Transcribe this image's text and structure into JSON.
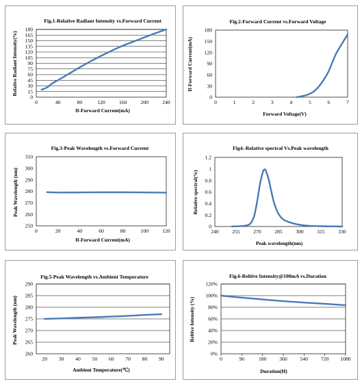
{
  "chart_data": [
    {
      "type": "line",
      "title": "Fig.1-Relative Radiant Intensity vs.Forward  Current",
      "xlabel": "If-Forward Current(mA)",
      "ylabel": "Relative Radiant Intensity(%)",
      "xlim": [
        0,
        240
      ],
      "ylim": [
        0,
        180
      ],
      "xticks": [
        0,
        40,
        80,
        120,
        160,
        200,
        240
      ],
      "yticks": [
        0,
        15,
        30,
        45,
        60,
        75,
        90,
        105,
        120,
        135,
        150,
        165,
        180
      ],
      "ytick_labels": [
        "0",
        "15",
        "30",
        "45",
        "60",
        "75",
        "90",
        "105",
        "120",
        "135",
        "150",
        "165",
        "180"
      ],
      "grid": "horizontal",
      "series": [
        {
          "color": "#4a78b8",
          "x": [
            10,
            20,
            30,
            40,
            60,
            80,
            100,
            120,
            140,
            160,
            180,
            200,
            220,
            240
          ],
          "y": [
            20,
            26,
            37,
            45,
            62,
            79,
            95,
            110,
            124,
            137,
            148,
            159,
            170,
            180
          ]
        }
      ]
    },
    {
      "type": "line",
      "title": "Fig.2-Forward Current vs.Forward Voltage",
      "xlabel": "Forward Voltage(V)",
      "ylabel": "If-Forward Current(mA)",
      "xlim": [
        0,
        7
      ],
      "ylim": [
        0,
        180
      ],
      "xticks": [
        0,
        1,
        2,
        3,
        4,
        5,
        6,
        7
      ],
      "yticks": [
        0,
        30,
        60,
        90,
        120,
        150,
        180
      ],
      "ytick_labels": [
        "0",
        "30",
        "60",
        "90",
        "120",
        "150",
        "180"
      ],
      "grid": "none",
      "series": [
        {
          "color": "#4a78b8",
          "x": [
            4.3,
            4.6,
            4.9,
            5.2,
            5.5,
            5.8,
            6.0,
            6.2,
            6.4,
            6.6,
            6.8,
            7.0
          ],
          "y": [
            0,
            3,
            7,
            15,
            30,
            52,
            70,
            95,
            118,
            135,
            152,
            168
          ]
        }
      ]
    },
    {
      "type": "line",
      "title": "Fig.3-Peak Wavelength vs.Forward Current",
      "xlabel": "If-Forward Current(mA)",
      "ylabel": "Peak Wavelength  (nm)",
      "xlim": [
        0,
        120
      ],
      "ylim": [
        250,
        310
      ],
      "xticks": [
        0,
        20,
        40,
        60,
        80,
        100,
        120
      ],
      "yticks": [
        250,
        260,
        270,
        280,
        290,
        300,
        310
      ],
      "ytick_labels": [
        "250",
        "260",
        "270",
        "280",
        "290",
        "300",
        "310"
      ],
      "grid": "none",
      "series": [
        {
          "color": "#4a78b8",
          "x": [
            10,
            20,
            40,
            60,
            80,
            100,
            120
          ],
          "y": [
            279.2,
            278.9,
            279.0,
            279.1,
            279.1,
            279.0,
            278.8
          ]
        }
      ]
    },
    {
      "type": "line",
      "title": "Fig4.-Relative spectral Vs.Peak wavelength",
      "xlabel": "Peak wavelength(nm)",
      "ylabel": "Relative spectral(%)",
      "xlim": [
        240,
        330
      ],
      "ylim": [
        0,
        1.2
      ],
      "xticks": [
        240,
        255,
        270,
        285,
        300,
        315,
        330
      ],
      "yticks": [
        0,
        0.2,
        0.4,
        0.6,
        0.8,
        1.0,
        1.2
      ],
      "ytick_labels": [
        "0",
        "0.2",
        "0.4",
        "0.6",
        "0.8",
        "1",
        "1.2"
      ],
      "grid": "none",
      "series": [
        {
          "color": "#4a78b8",
          "x": [
            252,
            260,
            264,
            266,
            268,
            270,
            272,
            274,
            275,
            276,
            278,
            280,
            282,
            285,
            288,
            292,
            296,
            300,
            305,
            310,
            320,
            330
          ],
          "y": [
            0,
            0.01,
            0.03,
            0.08,
            0.2,
            0.45,
            0.75,
            0.95,
            0.99,
            0.97,
            0.82,
            0.6,
            0.4,
            0.22,
            0.13,
            0.08,
            0.05,
            0.03,
            0.015,
            0.008,
            0.003,
            0
          ]
        }
      ]
    },
    {
      "type": "line",
      "title": "Fig.5-Peak Wavelength vs.Ambient Temperature",
      "xlabel": "Ambient Temperature(℃)",
      "ylabel": "Peak Wavelength  (nm)",
      "xlim": [
        15,
        95
      ],
      "ylim": [
        260,
        290
      ],
      "xticks": [
        20,
        30,
        40,
        50,
        60,
        70,
        80,
        90
      ],
      "yticks": [
        260,
        265,
        270,
        275,
        280,
        285,
        290
      ],
      "ytick_labels": [
        "260",
        "265",
        "270",
        "275",
        "280",
        "285",
        "290"
      ],
      "grid": "horizontal",
      "series": [
        {
          "color": "#4a78b8",
          "x": [
            20,
            30,
            40,
            50,
            60,
            70,
            80,
            90
          ],
          "y": [
            275.0,
            275.2,
            275.5,
            275.7,
            276.0,
            276.3,
            276.7,
            277.0
          ]
        }
      ]
    },
    {
      "type": "line",
      "title": "Fig.6-Reltive Intensity@100mA  vs.Duration",
      "xlabel": "Duration(H)",
      "ylabel": "Reltive Intensity (%)",
      "categories": [
        "0",
        "96",
        "180",
        "360",
        "540",
        "720",
        "1080"
      ],
      "ylim": [
        0,
        120
      ],
      "yticks": [
        0,
        20,
        40,
        60,
        80,
        100,
        120
      ],
      "ytick_labels": [
        "0%",
        "20%",
        "40%",
        "60%",
        "80%",
        "100%",
        "120%"
      ],
      "grid": "horizontal",
      "series": [
        {
          "color": "#4a78b8",
          "x": [
            0,
            1,
            2,
            3,
            4,
            5,
            6
          ],
          "y": [
            100,
            96.5,
            93.5,
            90.5,
            88,
            86,
            83.5
          ]
        }
      ]
    }
  ]
}
